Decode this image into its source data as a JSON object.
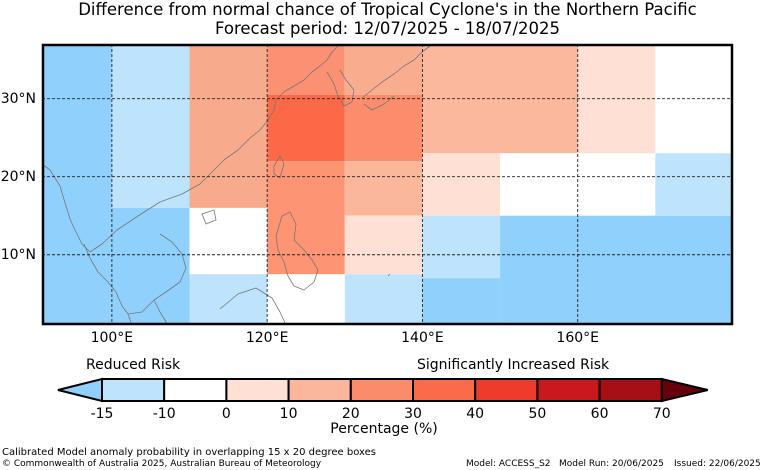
{
  "title_line1": "Difference from normal chance of Tropical Cyclone's in the Northern Pacific",
  "title_line2": "Forecast period: 12/07/2025 - 18/07/2025",
  "map": {
    "lon_range": [
      91,
      180
    ],
    "lat_range": [
      1,
      37
    ],
    "x_ticks": [
      {
        "lon": 100,
        "label": "100°E"
      },
      {
        "lon": 120,
        "label": "120°E"
      },
      {
        "lon": 140,
        "label": "140°E"
      },
      {
        "lon": 160,
        "label": "160°E"
      }
    ],
    "y_ticks": [
      {
        "lat": 10,
        "label": "10°N"
      },
      {
        "lat": 20,
        "label": "20°N"
      },
      {
        "lat": 30,
        "label": "30°N"
      }
    ],
    "gridlines": true,
    "cells": [
      {
        "lon0": 91,
        "lon1": 100,
        "lat0": 1,
        "lat1": 37,
        "color": "#8fd1fc"
      },
      {
        "lon0": 100,
        "lon1": 110,
        "lat0": 16,
        "lat1": 37,
        "color": "#bde3fd"
      },
      {
        "lon0": 100,
        "lon1": 110,
        "lat0": 1,
        "lat1": 16,
        "color": "#8fd1fc"
      },
      {
        "lon0": 110,
        "lon1": 120,
        "lat0": 16,
        "lat1": 37,
        "color": "#f8ab8c"
      },
      {
        "lon0": 110,
        "lon1": 120,
        "lat0": 7.5,
        "lat1": 16,
        "color": "#ffffff"
      },
      {
        "lon0": 110,
        "lon1": 120,
        "lat0": 1,
        "lat1": 7.5,
        "color": "#bde3fd"
      },
      {
        "lon0": 120,
        "lon1": 130,
        "lat0": 30.5,
        "lat1": 37,
        "color": "#fb9072"
      },
      {
        "lon0": 120,
        "lon1": 130,
        "lat0": 22,
        "lat1": 30.5,
        "color": "#fc6947"
      },
      {
        "lon0": 120,
        "lon1": 130,
        "lat0": 7.5,
        "lat1": 22,
        "color": "#fd9474"
      },
      {
        "lon0": 120,
        "lon1": 130,
        "lat0": 1,
        "lat1": 7.5,
        "color": "#ffffff"
      },
      {
        "lon0": 130,
        "lon1": 140,
        "lat0": 30.5,
        "lat1": 37,
        "color": "#f9ad8f"
      },
      {
        "lon0": 130,
        "lon1": 140,
        "lat0": 22,
        "lat1": 30.5,
        "color": "#fc8d6c"
      },
      {
        "lon0": 130,
        "lon1": 140,
        "lat0": 15,
        "lat1": 22,
        "color": "#fbb79c"
      },
      {
        "lon0": 130,
        "lon1": 140,
        "lat0": 7.5,
        "lat1": 15,
        "color": "#ffe0d5"
      },
      {
        "lon0": 130,
        "lon1": 140,
        "lat0": 1,
        "lat1": 7.5,
        "color": "#bde3fd"
      },
      {
        "lon0": 140,
        "lon1": 160,
        "lat0": 23,
        "lat1": 37,
        "color": "#fbb89c"
      },
      {
        "lon0": 140,
        "lon1": 150,
        "lat0": 15,
        "lat1": 23,
        "color": "#ffe0d5"
      },
      {
        "lon0": 150,
        "lon1": 170,
        "lat0": 15,
        "lat1": 23,
        "color": "#ffffff"
      },
      {
        "lon0": 140,
        "lon1": 150,
        "lat0": 7,
        "lat1": 15,
        "color": "#bde3fd"
      },
      {
        "lon0": 140,
        "lon1": 150,
        "lat0": 1,
        "lat1": 7,
        "color": "#8fd1fc"
      },
      {
        "lon0": 150,
        "lon1": 180,
        "lat0": 1,
        "lat1": 15,
        "color": "#8fd1fc"
      },
      {
        "lon0": 160,
        "lon1": 170,
        "lat0": 23,
        "lat1": 37,
        "color": "#ffe0d5"
      },
      {
        "lon0": 170,
        "lon1": 180,
        "lat0": 23,
        "lat1": 37,
        "color": "#ffffff"
      },
      {
        "lon0": 170,
        "lon1": 180,
        "lat0": 15,
        "lat1": 23,
        "color": "#bde3fd"
      }
    ]
  },
  "colorbar": {
    "label_left": "Reduced Risk",
    "label_right": "Significantly Increased Risk",
    "title": "Percentage (%)",
    "ticks": [
      "-15",
      "-10",
      "0",
      "10",
      "20",
      "30",
      "40",
      "50",
      "60",
      "70"
    ],
    "colors": [
      "#8fd1fc",
      "#bde3fd",
      "#ffffff",
      "#ffe0d5",
      "#fbb69b",
      "#fc8b6b",
      "#fb6a4a",
      "#ef3b2c",
      "#cb181d",
      "#a50f15",
      "#67000d"
    ]
  },
  "footer": {
    "note": "Calibrated Model anomaly probability in overlapping 15 x 20 degree boxes",
    "copyright": "© Commonwealth of Australia 2025, Australian Bureau of Meteorology",
    "model": "Model: ACCESS_S2",
    "model_run": "Model Run: 20/06/2025",
    "issued": "Issued: 22/06/2025"
  }
}
